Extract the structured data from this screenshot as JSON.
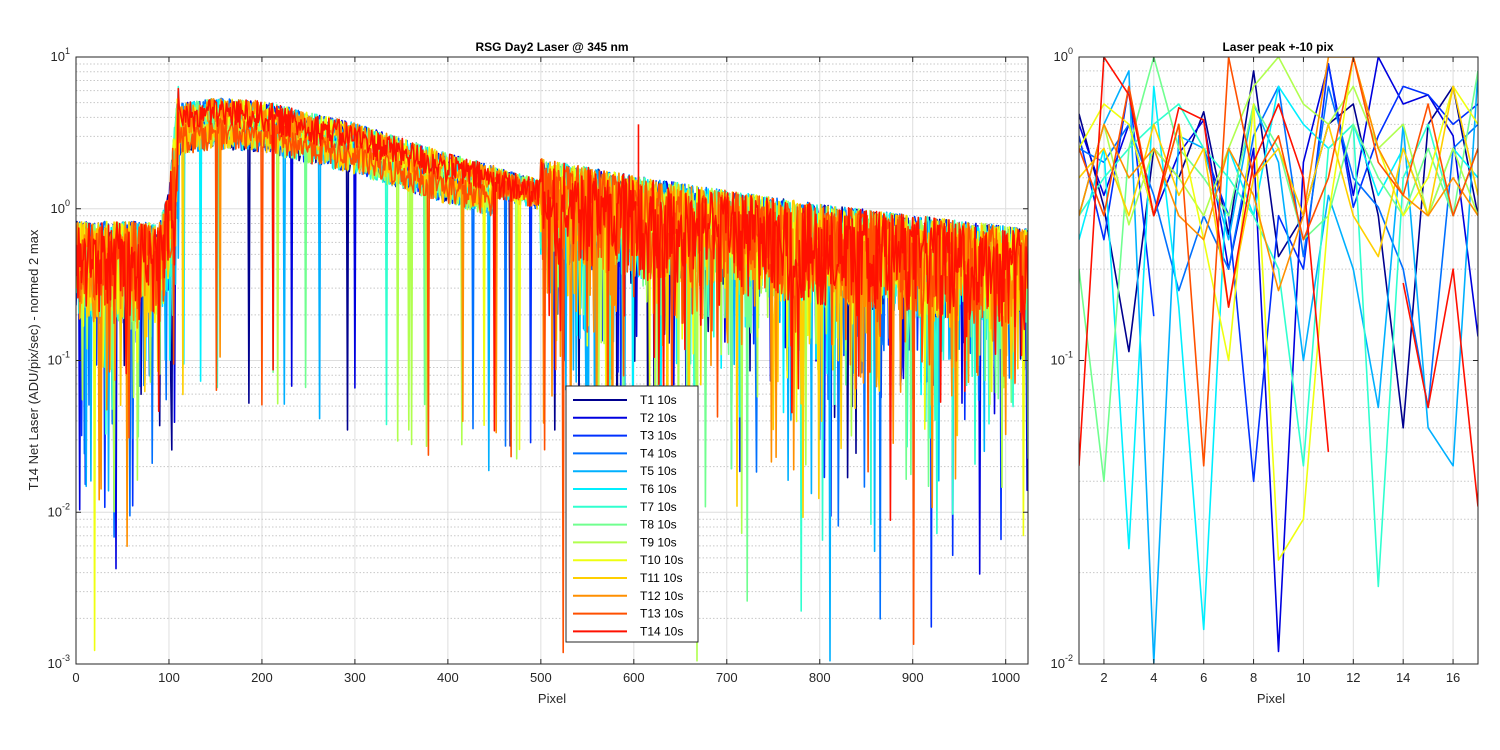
{
  "chart_data": [
    {
      "type": "line",
      "title": "RSG  Day2 Laser @ 345 nm",
      "xlabel": "Pixel",
      "ylabel": "T14 Net Laser (ADU/pix/sec) - normed 2 max",
      "xlim": [
        0,
        1024
      ],
      "ylim": [
        0.001,
        10
      ],
      "yscale": "log",
      "grid": true,
      "xticks": [
        "0",
        "100",
        "200",
        "300",
        "400",
        "500",
        "600",
        "700",
        "800",
        "900",
        "1000"
      ],
      "yticks": [
        {
          "base": "10",
          "exp": "-3"
        },
        {
          "base": "10",
          "exp": "-2"
        },
        {
          "base": "10",
          "exp": "-1"
        },
        {
          "base": "10",
          "exp": "0"
        },
        {
          "base": "10",
          "exp": "1"
        }
      ],
      "legend_position": "center",
      "series_style": "noisy per-pixel spectrum; ~0.3-1 for pixels 0-100, step to ~4-5 at ~110, slow decay to ~0.4 at 1024, many downward spikes",
      "envelope": {
        "x": [
          0,
          90,
          100,
          110,
          150,
          200,
          300,
          400,
          500,
          600,
          700,
          800,
          900,
          1024
        ],
        "y": [
          0.5,
          0.5,
          0.8,
          4.0,
          4.4,
          4.2,
          3.0,
          1.9,
          1.3,
          1.0,
          0.8,
          0.65,
          0.55,
          0.45
        ]
      }
    },
    {
      "type": "line",
      "title": "Laser peak +-10 pix",
      "xlabel": "Pixel",
      "ylabel": "",
      "xlim": [
        1,
        17
      ],
      "ylim": [
        0.01,
        1
      ],
      "yscale": "log",
      "grid": true,
      "xticks": [
        "2",
        "4",
        "6",
        "8",
        "10",
        "12",
        "14",
        "16"
      ],
      "yticks": [
        {
          "base": "10",
          "exp": "-2"
        },
        {
          "base": "10",
          "exp": "-1"
        },
        {
          "base": "10",
          "exp": "0"
        }
      ]
    }
  ],
  "series": [
    {
      "name": "T1 10s",
      "color": "#00008f",
      "right": [
        0.65,
        0.32,
        0.107,
        0.5,
        0.4,
        0.66,
        0.26,
        0.9,
        0.22,
        0.3,
        0.6,
        0.7,
        0.3,
        0.06,
        0.6,
        0.8,
        0.3
      ]
    },
    {
      "name": "T2 10s",
      "color": "#0000df",
      "right": [
        0.6,
        0.35,
        0.6,
        0.3,
        0.48,
        0.62,
        0.2,
        0.5,
        0.011,
        0.45,
        0.95,
        0.35,
        1.0,
        0.7,
        0.75,
        0.55,
        0.12
      ]
    },
    {
      "name": "T3 10s",
      "color": "#0030ff",
      "right": [
        0.55,
        0.25,
        0.8,
        0.14,
        null,
        0.5,
        0.3,
        0.04,
        0.3,
        0.2,
        0.95,
        0.32,
        0.55,
        0.8,
        0.75,
        0.6,
        0.7
      ]
    },
    {
      "name": "T4 10s",
      "color": "#0070ff",
      "right": [
        0.5,
        0.45,
        0.6,
        0.35,
        0.17,
        0.3,
        0.2,
        0.55,
        0.8,
        0.22,
        0.8,
        0.4,
        0.32,
        0.2,
        0.07,
        0.5,
        0.6
      ]
    },
    {
      "name": "T5 10s",
      "color": "#00b0ff",
      "right": [
        0.3,
        0.6,
        0.9,
        0.01,
        0.55,
        0.5,
        0.25,
        0.7,
        0.45,
        0.1,
        0.35,
        0.2,
        0.07,
        0.6,
        0.06,
        0.045,
        0.9
      ]
    },
    {
      "name": "T6 10s",
      "color": "#00efff",
      "right": [
        0.25,
        0.5,
        0.024,
        0.8,
        0.15,
        0.013,
        0.5,
        0.3,
        0.8,
        0.6,
        0.5,
        0.6,
        0.35,
        0.5,
        0.3,
        0.5,
        0.4
      ]
    },
    {
      "name": "T7 10s",
      "color": "#30ffcf",
      "right": [
        0.3,
        0.4,
        0.5,
        0.6,
        0.7,
        0.5,
        0.4,
        0.3,
        0.2,
        0.045,
        0.5,
        0.6,
        0.018,
        0.4,
        0.6,
        0.3,
        0.5
      ]
    },
    {
      "name": "T8 10s",
      "color": "#70ff8f",
      "right": [
        0.2,
        0.04,
        0.5,
        1.0,
        0.5,
        0.4,
        0.3,
        0.7,
        0.5,
        0.25,
        0.3,
        0.6,
        0.4,
        0.3,
        0.5,
        0.3,
        0.9
      ]
    },
    {
      "name": "T9 10s",
      "color": "#b0ff4f",
      "right": [
        0.3,
        0.6,
        0.28,
        0.5,
        0.4,
        0.3,
        0.5,
        0.8,
        1.0,
        0.7,
        0.6,
        0.8,
        0.5,
        0.6,
        0.3,
        0.5,
        0.3
      ]
    },
    {
      "name": "T10 10s",
      "color": "#efff10",
      "right": [
        0.5,
        0.7,
        0.6,
        0.3,
        0.6,
        0.25,
        0.1,
        0.7,
        0.022,
        0.03,
        0.3,
        1.0,
        0.5,
        0.3,
        0.4,
        0.8,
        0.6
      ]
    },
    {
      "name": "T11 10s",
      "color": "#ffcf00",
      "right": [
        0.4,
        0.5,
        0.3,
        0.6,
        0.35,
        0.5,
        0.15,
        0.4,
        0.5,
        0.3,
        0.6,
        0.3,
        0.22,
        0.5,
        0.3,
        0.8,
        0.35
      ]
    },
    {
      "name": "T12 10s",
      "color": "#ff8f00",
      "right": [
        0.3,
        0.6,
        0.4,
        0.5,
        0.3,
        0.25,
        0.5,
        0.35,
        0.17,
        0.3,
        1.0,
        1.0,
        0.5,
        0.35,
        0.3,
        0.4,
        0.3
      ]
    },
    {
      "name": "T13 10s",
      "color": "#ff5000",
      "right": [
        0.5,
        0.3,
        0.8,
        0.3,
        0.6,
        0.045,
        1.0,
        0.4,
        0.55,
        0.25,
        0.4,
        1.0,
        0.45,
        0.35,
        0.7,
        0.3,
        0.5
      ]
    },
    {
      "name": "T14 10s",
      "color": "#ff1000",
      "right": [
        0.045,
        1.0,
        0.75,
        0.3,
        0.68,
        0.62,
        0.15,
        0.45,
        0.7,
        0.4,
        0.05,
        null,
        null,
        0.18,
        0.07,
        0.2,
        0.033
      ]
    }
  ]
}
